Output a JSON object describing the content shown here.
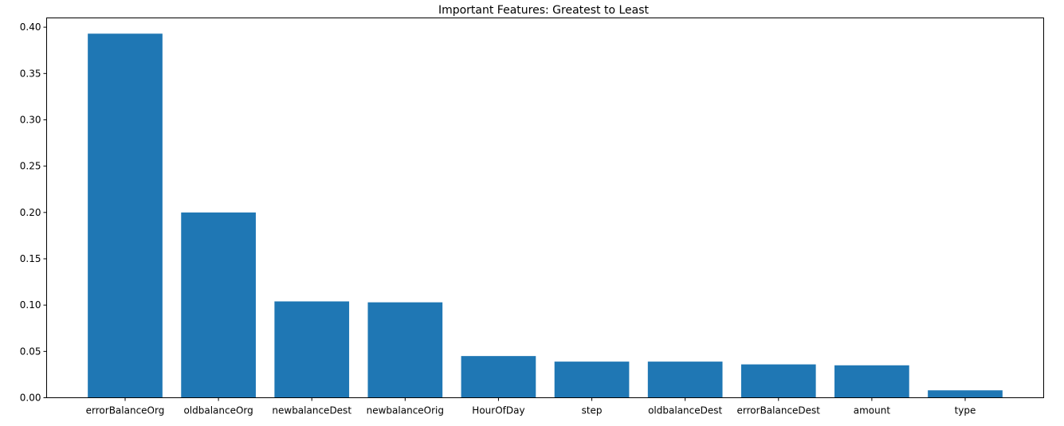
{
  "chart_data": {
    "type": "bar",
    "title": "Important Features: Greatest to Least",
    "xlabel": "",
    "ylabel": "",
    "categories": [
      "errorBalanceOrg",
      "oldbalanceOrg",
      "newbalanceDest",
      "newbalanceOrig",
      "HourOfDay",
      "step",
      "oldbalanceDest",
      "errorBalanceDest",
      "amount",
      "type"
    ],
    "values": [
      0.393,
      0.2,
      0.104,
      0.103,
      0.045,
      0.039,
      0.039,
      0.036,
      0.035,
      0.008
    ],
    "ylim": [
      0,
      0.41
    ],
    "yticks": [
      "0.00",
      "0.05",
      "0.10",
      "0.15",
      "0.20",
      "0.25",
      "0.30",
      "0.35",
      "0.40"
    ],
    "bar_color": "#1f77b4",
    "grid": false,
    "legend": "none"
  }
}
